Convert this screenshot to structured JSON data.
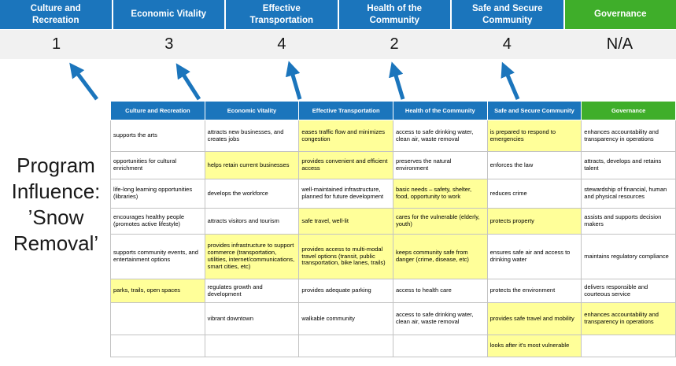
{
  "title": {
    "lines": [
      "Program",
      "Influence:",
      "’Snow",
      "Removal’"
    ]
  },
  "colors": {
    "blue": "#1B75BC",
    "green": "#3FAE2A",
    "hl": "#FFFF99",
    "scorebg": "#F1F1F1"
  },
  "arrows": {
    "direction": "up",
    "count": 5
  },
  "scoreboard": {
    "columns": [
      {
        "label": "Culture and Recreation",
        "score": "1",
        "theme": "blue"
      },
      {
        "label": "Economic Vitality",
        "score": "3",
        "theme": "blue"
      },
      {
        "label": "Effective Transportation",
        "score": "4",
        "theme": "blue"
      },
      {
        "label": "Health of the Community",
        "score": "2",
        "theme": "blue"
      },
      {
        "label": "Safe and Secure Community",
        "score": "4",
        "theme": "blue"
      },
      {
        "label": "Governance",
        "score": "N/A",
        "theme": "green"
      }
    ]
  },
  "matrix": {
    "headers": [
      {
        "label": "Culture and Recreation",
        "theme": "blue"
      },
      {
        "label": "Economic Vitality",
        "theme": "blue"
      },
      {
        "label": "Effective Transportation",
        "theme": "blue"
      },
      {
        "label": "Health of the Community",
        "theme": "blue"
      },
      {
        "label": "Safe and Secure Community",
        "theme": "blue"
      },
      {
        "label": "Governance",
        "theme": "green"
      }
    ],
    "rows": [
      [
        {
          "text": "supports the arts",
          "highlight": false
        },
        {
          "text": "attracts new businesses, and creates jobs",
          "highlight": false
        },
        {
          "text": "eases traffic flow and minimizes congestion",
          "highlight": true
        },
        {
          "text": "access to safe drinking water, clean air, waste removal",
          "highlight": false
        },
        {
          "text": "is prepared to respond to emergencies",
          "highlight": true
        },
        {
          "text": "enhances accountability and transparency in operations",
          "highlight": false
        }
      ],
      [
        {
          "text": "opportunities for cultural enrichment",
          "highlight": false
        },
        {
          "text": "helps retain current businesses",
          "highlight": true
        },
        {
          "text": "provides convenient and efficient access",
          "highlight": true
        },
        {
          "text": "preserves the natural environment",
          "highlight": false
        },
        {
          "text": "enforces the law",
          "highlight": false
        },
        {
          "text": "attracts, develops and retains talent",
          "highlight": false
        }
      ],
      [
        {
          "text": "life-long learning opportunities (libraries)",
          "highlight": false
        },
        {
          "text": "develops the workforce",
          "highlight": false
        },
        {
          "text": "well-maintained infrastructure, planned for future development",
          "highlight": false
        },
        {
          "text": "basic needs – safety, shelter, food, opportunity to work",
          "highlight": true
        },
        {
          "text": "reduces crime",
          "highlight": false
        },
        {
          "text": "stewardship of financial, human and physical resources",
          "highlight": false
        }
      ],
      [
        {
          "text": "encourages healthy people (promotes active lifestyle)",
          "highlight": false
        },
        {
          "text": "attracts visitors and tourism",
          "highlight": false
        },
        {
          "text": "safe travel, well-lit",
          "highlight": true
        },
        {
          "text": "cares for the vulnerable (elderly, youth)",
          "highlight": true
        },
        {
          "text": "protects property",
          "highlight": true
        },
        {
          "text": "assists and supports decision makers",
          "highlight": false
        }
      ],
      [
        {
          "text": "supports community events, and entertainment options",
          "highlight": false
        },
        {
          "text": "provides infrastructure to support commerce (transportation, utilities, internet/communications, smart cities, etc)",
          "highlight": true
        },
        {
          "text": "provides access to multi-modal travel options (transit, public transportation, bike lanes, trails)",
          "highlight": true
        },
        {
          "text": "keeps community safe from danger (crime, disease, etc)",
          "highlight": true
        },
        {
          "text": "ensures safe air and access to drinking water",
          "highlight": false
        },
        {
          "text": "maintains regulatory compliance",
          "highlight": false
        }
      ],
      [
        {
          "text": "parks, trails, open spaces",
          "highlight": true
        },
        {
          "text": "regulates growth and development",
          "highlight": false
        },
        {
          "text": "provides adequate parking",
          "highlight": false
        },
        {
          "text": "access to health care",
          "highlight": false
        },
        {
          "text": "protects the environment",
          "highlight": false
        },
        {
          "text": "delivers responsible and courteous service",
          "highlight": false
        }
      ],
      [
        {
          "text": "",
          "highlight": false
        },
        {
          "text": "vibrant downtown",
          "highlight": false
        },
        {
          "text": "walkable community",
          "highlight": false
        },
        {
          "text": "access to safe drinking water, clean air, waste removal",
          "highlight": false
        },
        {
          "text": "provides safe travel and mobility",
          "highlight": true
        },
        {
          "text": "enhances accountability and transparency in operations",
          "highlight": true
        }
      ],
      [
        {
          "text": "",
          "highlight": false
        },
        {
          "text": "",
          "highlight": false
        },
        {
          "text": "",
          "highlight": false
        },
        {
          "text": "",
          "highlight": false
        },
        {
          "text": "looks after it's most vulnerable",
          "highlight": true
        },
        {
          "text": "",
          "highlight": false
        }
      ]
    ]
  }
}
